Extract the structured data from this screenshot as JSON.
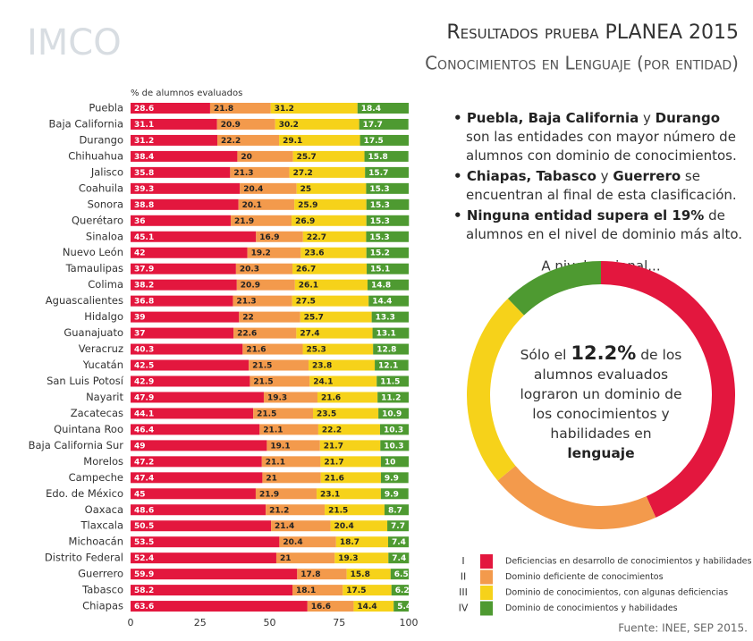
{
  "header": {
    "logo": "IMCO",
    "title": "Resultados prueba PLANEA 2015",
    "subtitle": "Conocimientos en Lenguaje (por entidad)"
  },
  "chart_data": [
    {
      "type": "stacked-barh",
      "x_label": "% de alumnos evaluados",
      "xlim": [
        0,
        100
      ],
      "xticks": [
        0,
        25,
        50,
        75,
        100
      ],
      "categories": [
        "Puebla",
        "Baja California",
        "Durango",
        "Chihuahua",
        "Jalisco",
        "Coahuila",
        "Sonora",
        "Querétaro",
        "Sinaloa",
        "Nuevo León",
        "Tamaulipas",
        "Colima",
        "Aguascalientes",
        "Hidalgo",
        "Guanajuato",
        "Veracruz",
        "Yucatán",
        "San Luis Potosí",
        "Nayarit",
        "Zacatecas",
        "Quintana Roo",
        "Baja California Sur",
        "Morelos",
        "Campeche",
        "Edo. de México",
        "Oaxaca",
        "Tlaxcala",
        "Michoacán",
        "Distrito Federal",
        "Guerrero",
        "Tabasco",
        "Chiapas"
      ],
      "series": [
        {
          "level": "I",
          "name": "Deficiencias en desarrollo de conocimientos y habilidades",
          "color": "#e3173e",
          "label_color": "#ffffff",
          "values": [
            28.6,
            31.1,
            31.2,
            38.4,
            35.8,
            39.3,
            38.8,
            36,
            45.1,
            42,
            37.9,
            38.2,
            36.8,
            39,
            37,
            40.3,
            42.5,
            42.9,
            47.9,
            44.1,
            46.4,
            49,
            47.2,
            47.4,
            45,
            48.6,
            50.5,
            53.5,
            52.4,
            59.9,
            58.2,
            63.6
          ]
        },
        {
          "level": "II",
          "name": "Dominio deficiente de conocimientos",
          "color": "#f39a4c",
          "label_color": "#222222",
          "values": [
            21.8,
            20.9,
            22.2,
            20,
            21.3,
            20.4,
            20.1,
            21.9,
            16.9,
            19.2,
            20.3,
            20.9,
            21.3,
            22,
            22.6,
            21.6,
            21.5,
            21.5,
            19.3,
            21.5,
            21.1,
            19.1,
            21.1,
            21,
            21.9,
            21.2,
            21.4,
            20.4,
            21,
            17.8,
            18.1,
            16.6
          ]
        },
        {
          "level": "III",
          "name": "Dominio de conocimientos, con algunas deficiencias",
          "color": "#f6d21a",
          "label_color": "#222222",
          "values": [
            31.2,
            30.2,
            29.1,
            25.7,
            27.2,
            25,
            25.9,
            26.9,
            22.7,
            23.6,
            26.7,
            26.1,
            27.5,
            25.7,
            27.4,
            25.3,
            23.8,
            24.1,
            21.6,
            23.5,
            22.2,
            21.7,
            21.7,
            21.6,
            23.1,
            21.5,
            20.4,
            18.7,
            19.3,
            15.8,
            17.5,
            14.4
          ]
        },
        {
          "level": "IV",
          "name": "Dominio de conocimientos y habilidades",
          "color": "#4e9a31",
          "label_color": "#ffffff",
          "values": [
            18.4,
            17.7,
            17.5,
            15.8,
            15.7,
            15.3,
            15.3,
            15.3,
            15.3,
            15.2,
            15.1,
            14.8,
            14.4,
            13.3,
            13.1,
            12.8,
            12.1,
            11.5,
            11.2,
            10.9,
            10.3,
            10.3,
            10,
            9.9,
            9.9,
            8.7,
            7.7,
            7.4,
            7.4,
            6.5,
            6.2,
            5.4
          ]
        }
      ]
    },
    {
      "type": "donut",
      "title": "A nivel nacional...",
      "values": [
        43.3,
        20.7,
        23.8,
        12.2
      ],
      "colors": [
        "#e3173e",
        "#f39a4c",
        "#f6d21a",
        "#4e9a31"
      ],
      "value_labels": [
        null,
        null,
        null,
        "12.2%"
      ],
      "text_before": "Sólo el",
      "text_after": "de los alumnos evaluados lograron un dominio de los conocimientos y habilidades en",
      "text_end": "lenguaje"
    }
  ],
  "notes": [
    [
      {
        "text": "Puebla, Baja California",
        "bold": true
      },
      {
        "text": " y ",
        "bold": false
      },
      {
        "text": "Durango",
        "bold": true
      },
      {
        "text": " son las entidades con mayor número de alumnos con dominio de conocimientos.",
        "bold": false
      }
    ],
    [
      {
        "text": "Chiapas, Tabasco",
        "bold": true
      },
      {
        "text": " y ",
        "bold": false
      },
      {
        "text": "Guerrero",
        "bold": true
      },
      {
        "text": " se encuentran al final de esta clasificación.",
        "bold": false
      }
    ],
    [
      {
        "text": "Ninguna entidad supera el 19%",
        "bold": true
      },
      {
        "text": " de alumnos en el nivel de dominio más alto.",
        "bold": false
      }
    ]
  ],
  "source": "Fuente: INEE, SEP 2015."
}
